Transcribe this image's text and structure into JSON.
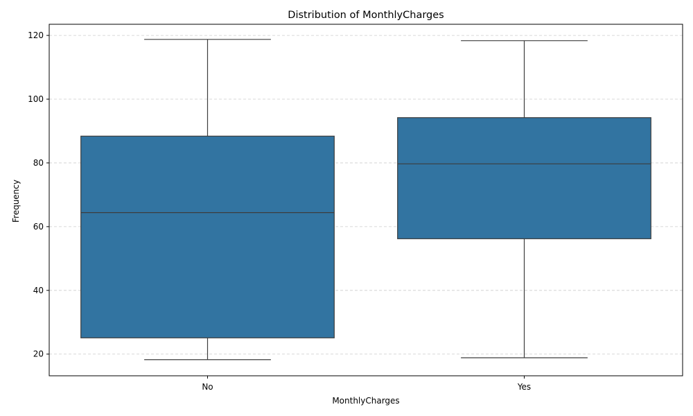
{
  "chart_data": {
    "type": "box",
    "title": "Distribution of MonthlyCharges",
    "xlabel": "MonthlyCharges",
    "ylabel": "Frequency",
    "categories": [
      "No",
      "Yes"
    ],
    "boxes": [
      {
        "category": "No",
        "whisker_low": 18.25,
        "q1": 25.1,
        "median": 64.4,
        "q3": 88.4,
        "whisker_high": 118.75
      },
      {
        "category": "Yes",
        "whisker_low": 18.85,
        "q1": 56.2,
        "median": 79.7,
        "q3": 94.2,
        "whisker_high": 118.35
      }
    ],
    "ylim": [
      13.2,
      123.5
    ],
    "yticks": [
      20,
      40,
      60,
      80,
      100,
      120
    ],
    "grid": "y-dashed",
    "box_color": "#3274a1",
    "line_color": "#3d3d3d",
    "grid_color": "#cccccc"
  }
}
